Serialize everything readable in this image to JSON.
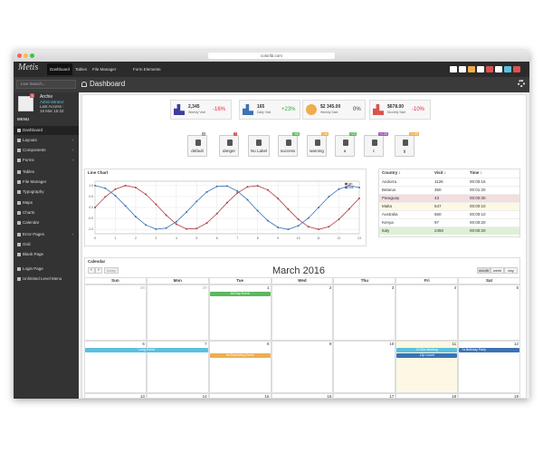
{
  "browser": {
    "url": "colorlib.com"
  },
  "topnav": {
    "brand": "Metis",
    "links": [
      "Dashboard",
      "Tables",
      "File Manager",
      "Form Elements"
    ]
  },
  "header": {
    "title": "Dashboard"
  },
  "sidebar": {
    "search": "Live Search...",
    "user": {
      "name": "Archie",
      "role": "Administrator",
      "last_access": "Last Access :",
      "date": "16 Mar 16:32",
      "badge": "5"
    },
    "menu_title": "MENU",
    "items": [
      "Dashboard",
      "Layouts",
      "Components",
      "Forms",
      "Tables",
      "File Manager",
      "Typography",
      "Maps",
      "Charts",
      "Calendar",
      "Error Pages",
      "Grid",
      "Blank Page",
      "Login Page",
      "Unlimited Level Menu"
    ]
  },
  "stats": [
    {
      "value": "2,345",
      "label": "Weekly Visit",
      "change": "-16%"
    },
    {
      "value": "165",
      "label": "Daily Visit",
      "change": "+23%"
    },
    {
      "value": "$2 345.00",
      "label": "Weekly Sale",
      "change": "0%"
    },
    {
      "value": "$678.00",
      "label": "Monthly Sale",
      "change": "-10%"
    }
  ],
  "buttons": [
    {
      "label": "default",
      "badge": "4"
    },
    {
      "label": "danger",
      "badge": "7"
    },
    {
      "label": "No Label"
    },
    {
      "label": "success",
      "badge": "+88"
    },
    {
      "label": "warning",
      "badge": "+45"
    },
    {
      "label": "a",
      "badge": "+25"
    },
    {
      "label": "c",
      "badge": "+1.2K"
    },
    {
      "label": "g",
      "badge": "+4.5K"
    }
  ],
  "line_chart": {
    "type": "line",
    "title": "Line Chart",
    "x": [
      0,
      0.5,
      1,
      1.5,
      2,
      2.5,
      3,
      3.5,
      4,
      4.5,
      5,
      5.5,
      6,
      6.5,
      7,
      7.5,
      8,
      8.5,
      9,
      9.5,
      10,
      10.5,
      11,
      11.5,
      12,
      12.5,
      13
    ],
    "series": [
      {
        "name": "sin",
        "color": "#b0403f",
        "values": [
          0,
          0.48,
          0.84,
          1.0,
          0.91,
          0.6,
          0.14,
          -0.35,
          -0.76,
          -0.98,
          -0.96,
          -0.71,
          -0.28,
          0.22,
          0.66,
          0.94,
          0.99,
          0.8,
          0.41,
          -0.08,
          -0.54,
          -0.88,
          -1.0,
          -0.88,
          -0.54,
          -0.07,
          0.42
        ]
      },
      {
        "name": "cos",
        "color": "#3d72b4",
        "values": [
          1,
          0.88,
          0.54,
          0.07,
          -0.42,
          -0.8,
          -0.99,
          -0.94,
          -0.65,
          -0.21,
          0.28,
          0.71,
          0.96,
          0.98,
          0.75,
          0.35,
          -0.15,
          -0.6,
          -0.91,
          -1.0,
          -0.84,
          -0.48,
          0,
          0.49,
          0.84,
          1.0,
          0.91
        ]
      }
    ],
    "xlim": [
      0,
      13
    ],
    "xticks": [
      0,
      1,
      2,
      3,
      4,
      5,
      6,
      7,
      8,
      9,
      10,
      11,
      12,
      13
    ],
    "ylim": [
      -1.2,
      1.2
    ],
    "yticks": [
      {
        "value": 1,
        "label": "1.0"
      },
      {
        "value": 0.5,
        "label": "0.5"
      },
      {
        "value": 0,
        "label": "0.0"
      },
      {
        "value": -0.5,
        "label": "-0.5"
      },
      {
        "value": -1,
        "label": "-1.0"
      }
    ],
    "grid": true,
    "legend": "top-right"
  },
  "table": {
    "headers": [
      "Country ↕",
      "Visit ↕",
      "Time ↕"
    ],
    "rows": [
      [
        "Andorra",
        "1126",
        "00:00:15"
      ],
      [
        "Belarus",
        "350",
        "00:01:20"
      ],
      [
        "Paraguay",
        "43",
        "00:00:30"
      ],
      [
        "Malta",
        "547",
        "00:00:10"
      ],
      [
        "Australia",
        "560",
        "00:00:10"
      ],
      [
        "Kenya",
        "97",
        "00:00:20"
      ],
      [
        "Italy",
        "2450",
        "00:00:20"
      ]
    ]
  },
  "calendar": {
    "panel_title": "Calendar",
    "title": "March 2016",
    "today": "today",
    "views": [
      "month",
      "week",
      "day"
    ],
    "days": [
      "Sun",
      "Mon",
      "Tue",
      "Wed",
      "Thu",
      "Fri",
      "Sat"
    ],
    "weeks": [
      [
        "28",
        "29",
        "1",
        "2",
        "3",
        "4",
        "5"
      ],
      [
        "6",
        "7",
        "8",
        "9",
        "10",
        "11",
        "12"
      ],
      [
        "13",
        "14",
        "15",
        "16",
        "17",
        "18",
        "19"
      ]
    ],
    "events": [
      "All Day Event",
      "Long Event",
      "9a Repeating Event",
      "10:30a Meeting",
      "12p Lunch",
      "7a Birthday Party"
    ]
  }
}
